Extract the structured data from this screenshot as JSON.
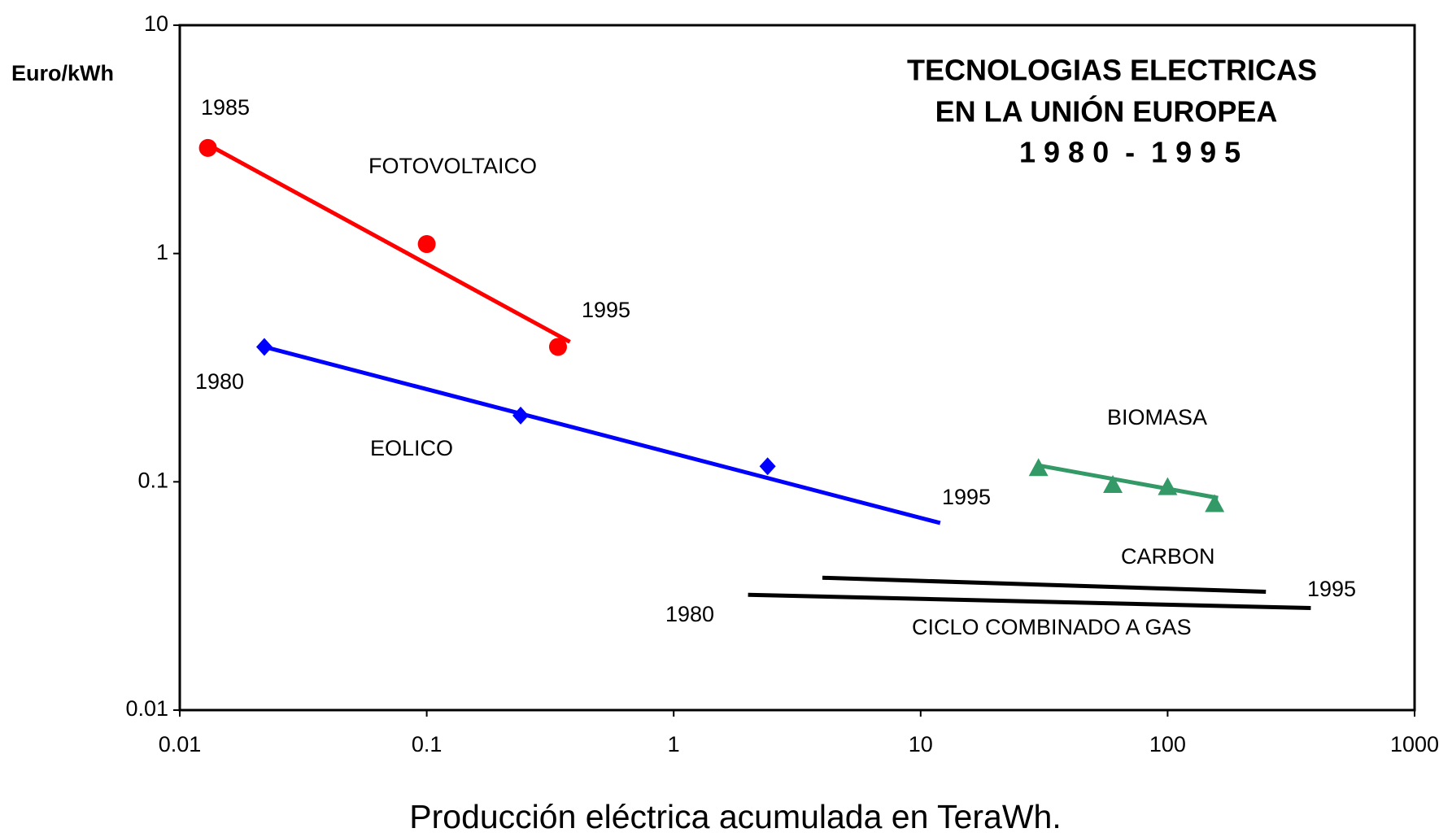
{
  "chart_data": {
    "type": "scatter",
    "title_lines": [
      "TECNOLOGIAS ELECTRICAS",
      "EN LA UNIÓN EUROPEA",
      "1 9 8 0  -  1 9 9 5"
    ],
    "y_label": "Euro/kWh",
    "x_label": "Producción eléctrica acumulada en TeraWh.",
    "log_x": true,
    "log_y": true,
    "xlim": [
      0.01,
      1000
    ],
    "xticks": [
      0.01,
      0.1,
      1,
      10,
      100,
      1000
    ],
    "ylim": [
      0.01,
      10
    ],
    "yticks": [
      0.01,
      0.1,
      1,
      10
    ],
    "series": [
      {
        "name": "FOTOVOLTAICO",
        "color": "#ff0000",
        "marker": "circle",
        "x": [
          0.013,
          0.1,
          0.34
        ],
        "values": [
          2.9,
          1.1,
          0.39
        ],
        "trend": {
          "x": [
            0.013,
            0.38
          ],
          "values": [
            3.0,
            0.41
          ]
        }
      },
      {
        "name": "EOLICO",
        "color": "#0000ff",
        "marker": "diamond",
        "x": [
          0.022,
          0.24,
          2.4
        ],
        "values": [
          0.39,
          0.195,
          0.117
        ],
        "trend": {
          "x": [
            0.022,
            12
          ],
          "values": [
            0.39,
            0.066
          ]
        }
      },
      {
        "name": "BIOMASA",
        "color": "#339966",
        "marker": "triangle",
        "x": [
          30,
          60,
          100,
          155
        ],
        "values": [
          0.115,
          0.097,
          0.095,
          0.08
        ],
        "trend": {
          "x": [
            30,
            160
          ],
          "values": [
            0.118,
            0.085
          ]
        }
      },
      {
        "name": "CARBON",
        "color": "#000000",
        "marker": "none",
        "x": [
          4,
          250
        ],
        "values": [
          0.038,
          0.033
        ]
      },
      {
        "name": "CICLO COMBINADO A GAS",
        "color": "#000000",
        "marker": "none",
        "x": [
          2,
          380
        ],
        "values": [
          0.032,
          0.028
        ]
      }
    ],
    "annotations": [
      "1985",
      "1995",
      "1980",
      "1995",
      "1980",
      "1995"
    ]
  }
}
